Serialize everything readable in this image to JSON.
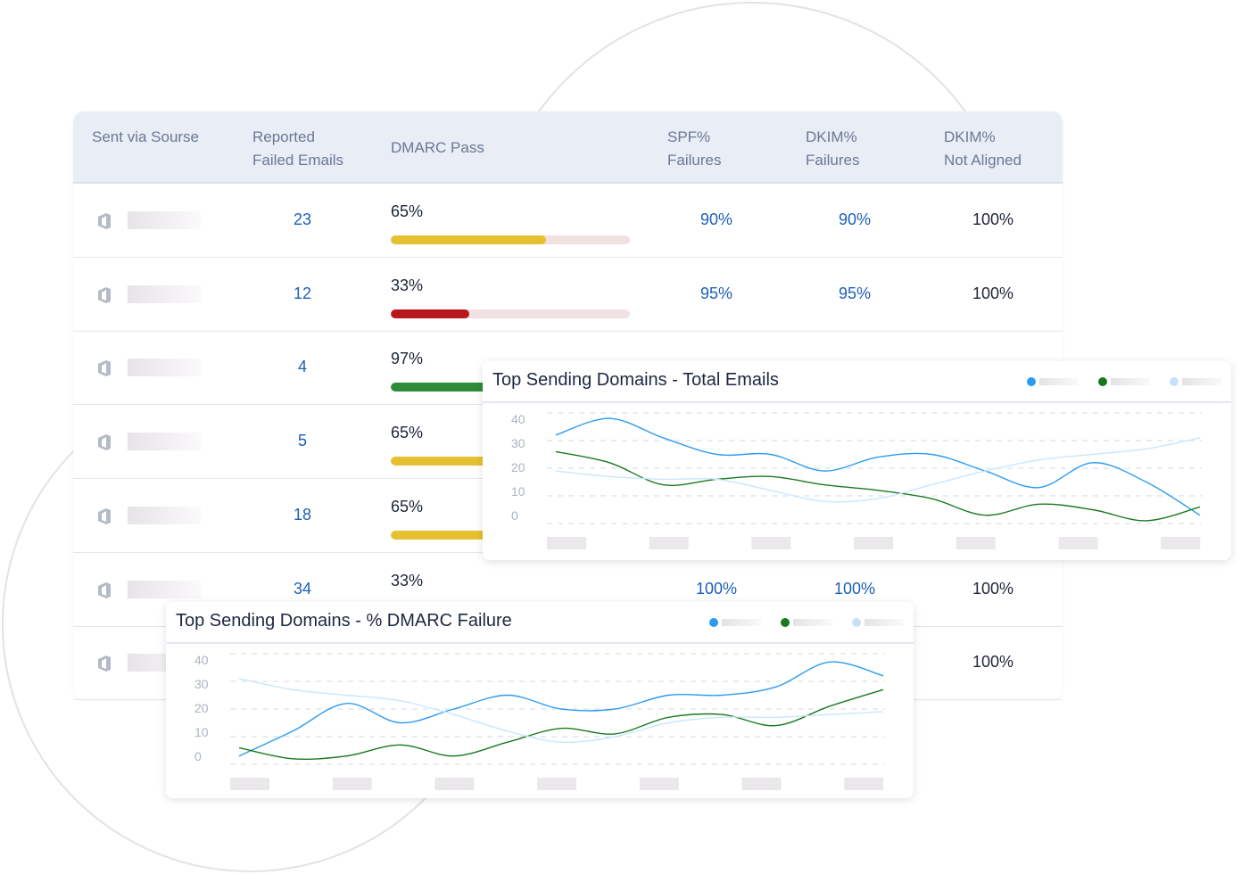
{
  "table": {
    "headers": [
      {
        "line1": "Sent via Sourse",
        "line2": ""
      },
      {
        "line1": "Reported",
        "line2": "Failed Emails"
      },
      {
        "line1": "DMARC Pass",
        "line2": ""
      },
      {
        "line1": "SPF%",
        "line2": "Failures"
      },
      {
        "line1": "DKIM%",
        "line2": "Failures"
      },
      {
        "line1": "DKIM%",
        "line2": "Not Aligned"
      }
    ],
    "rows": [
      {
        "reported": "23",
        "dmarc": "65%",
        "dmarc_value": 65,
        "bar_color": "#e6c12f",
        "spf": "90%",
        "dkim": "90%",
        "not_aligned": "100%"
      },
      {
        "reported": "12",
        "dmarc": "33%",
        "dmarc_value": 33,
        "bar_color": "#b8171b",
        "spf": "95%",
        "dkim": "95%",
        "not_aligned": "100%"
      },
      {
        "reported": "4",
        "dmarc": "97%",
        "dmarc_value": 97,
        "bar_color": "#2e8b3a"
      },
      {
        "reported": "5",
        "dmarc": "65%",
        "dmarc_value": 65,
        "bar_color": "#e6c12f"
      },
      {
        "reported": "18",
        "dmarc": "65%",
        "dmarc_value": 65,
        "bar_color": "#e6c12f"
      },
      {
        "reported": "34",
        "dmarc": "33%",
        "spf": "100%",
        "dkim": "100%",
        "not_aligned": "100%"
      },
      {
        "not_aligned": "100%"
      }
    ],
    "source_icon": "office-icon"
  },
  "chart_data": [
    {
      "type": "line",
      "title": "Top Sending Domains - Total Emails",
      "yticks": [
        "40",
        "30",
        "20",
        "10",
        "0"
      ],
      "ylim": [
        0,
        40
      ],
      "grid": true,
      "legend": "top-right",
      "series": [
        {
          "color": "#2b9cf2",
          "values": [
            32,
            38,
            31,
            25,
            25,
            19,
            24,
            25,
            19,
            13,
            22,
            15,
            3
          ]
        },
        {
          "color": "#187a1e",
          "values": [
            26,
            22,
            14,
            16,
            17,
            14,
            12,
            9,
            3,
            7,
            5,
            1,
            6
          ]
        },
        {
          "color": "#cbe6fb",
          "values": [
            19,
            17,
            16,
            16,
            12,
            8,
            9,
            14,
            19,
            23,
            25,
            27,
            31
          ]
        }
      ]
    },
    {
      "type": "line",
      "title": "Top Sending Domains - % DMARC Failure",
      "yticks": [
        "40",
        "30",
        "20",
        "10",
        "0"
      ],
      "ylim": [
        0,
        40
      ],
      "grid": true,
      "legend": "top-right",
      "series": [
        {
          "color": "#2b9cf2",
          "values": [
            3,
            12,
            22,
            15,
            20,
            25,
            20,
            20,
            25,
            25,
            28,
            37,
            32
          ]
        },
        {
          "color": "#187a1e",
          "values": [
            6,
            2,
            3,
            7,
            3,
            8,
            13,
            11,
            17,
            18,
            14,
            21,
            27
          ]
        },
        {
          "color": "#cbe6fb",
          "values": [
            31,
            27,
            25,
            23,
            18,
            12,
            8,
            10,
            15,
            17,
            17,
            18,
            19
          ]
        }
      ]
    }
  ]
}
